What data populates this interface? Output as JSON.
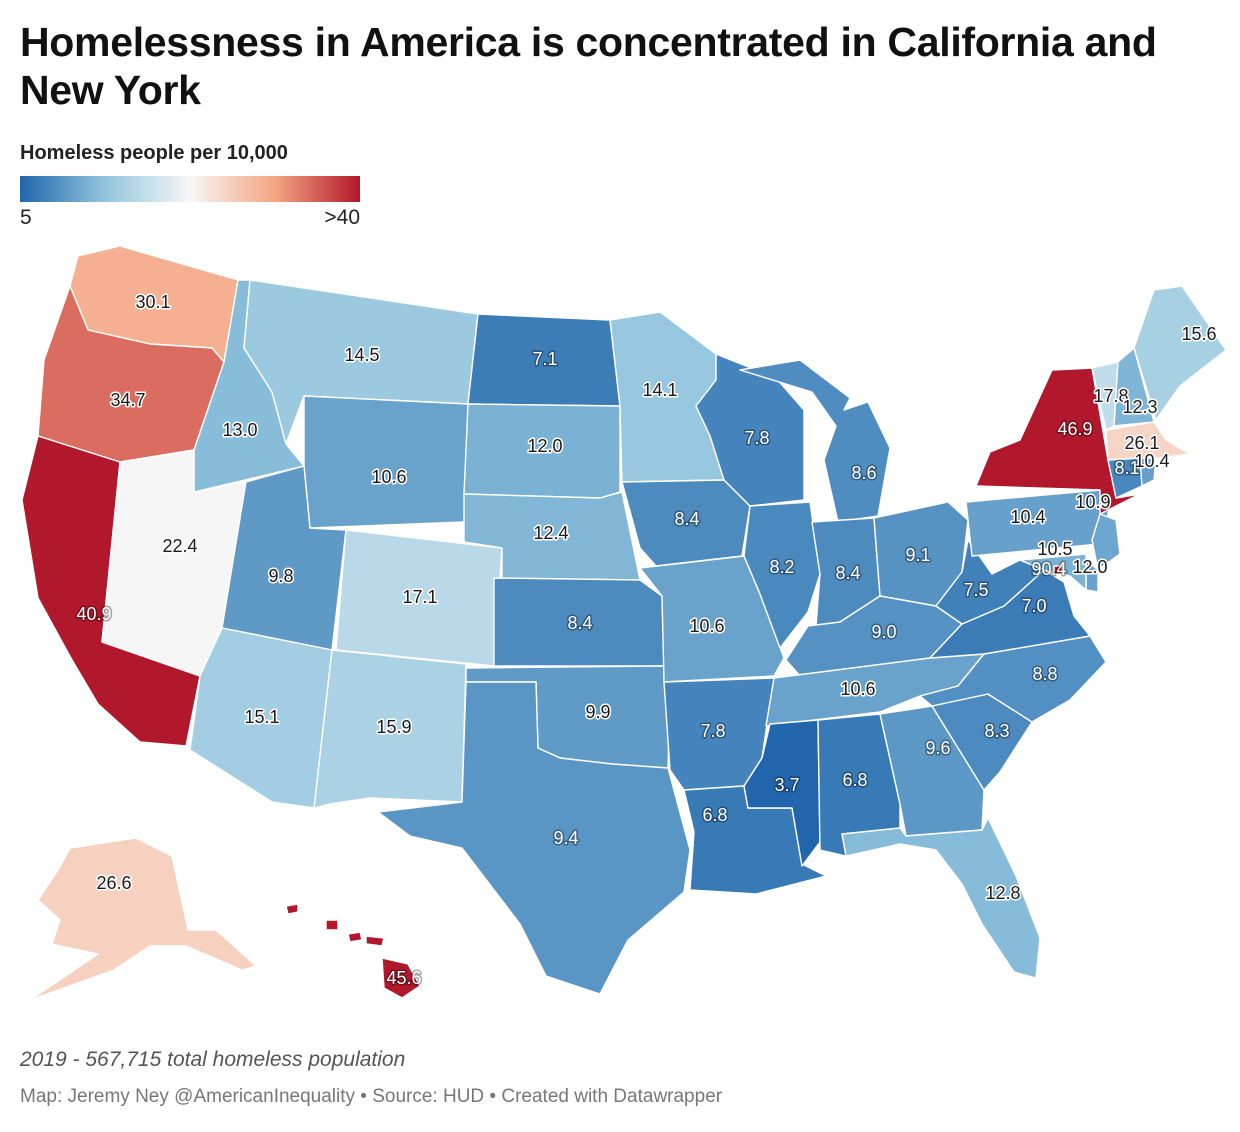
{
  "title": "Homelessness in America is concentrated in California and New York",
  "legend": {
    "title": "Homeless people per 10,000",
    "min_label": "5",
    "max_label": ">40"
  },
  "note": "2019 - 567,715 total homeless population",
  "credit": "Map: Jeremy Ney @AmericanInequality • Source: HUD • Created with Datawrapper",
  "colors": {
    "scale": [
      "#2166ac",
      "#92c5de",
      "#f7f7f7",
      "#f4a582",
      "#b2182b"
    ]
  },
  "states": [
    {
      "id": "WA",
      "value": "30.1"
    },
    {
      "id": "OR",
      "value": "34.7"
    },
    {
      "id": "CA",
      "value": "40.9"
    },
    {
      "id": "ID",
      "value": "13.0"
    },
    {
      "id": "NV",
      "value": "22.4"
    },
    {
      "id": "MT",
      "value": "14.5"
    },
    {
      "id": "WY",
      "value": "10.6"
    },
    {
      "id": "UT",
      "value": "9.8"
    },
    {
      "id": "CO",
      "value": "17.1"
    },
    {
      "id": "AZ",
      "value": "15.1"
    },
    {
      "id": "NM",
      "value": "15.9"
    },
    {
      "id": "ND",
      "value": "7.1"
    },
    {
      "id": "SD",
      "value": "12.0"
    },
    {
      "id": "NE",
      "value": "12.4"
    },
    {
      "id": "KS",
      "value": "8.4"
    },
    {
      "id": "OK",
      "value": "9.9"
    },
    {
      "id": "TX",
      "value": "9.4"
    },
    {
      "id": "MN",
      "value": "14.1"
    },
    {
      "id": "IA",
      "value": "8.4"
    },
    {
      "id": "MO",
      "value": "10.6"
    },
    {
      "id": "AR",
      "value": "7.8"
    },
    {
      "id": "LA",
      "value": "6.8"
    },
    {
      "id": "WI",
      "value": "7.8"
    },
    {
      "id": "IL",
      "value": "8.2"
    },
    {
      "id": "MI",
      "value": "8.6"
    },
    {
      "id": "IN",
      "value": "8.4"
    },
    {
      "id": "OH",
      "value": "9.1"
    },
    {
      "id": "KY",
      "value": "9.0"
    },
    {
      "id": "TN",
      "value": "10.6"
    },
    {
      "id": "MS",
      "value": "3.7"
    },
    {
      "id": "AL",
      "value": "6.8"
    },
    {
      "id": "GA",
      "value": "9.6"
    },
    {
      "id": "FL",
      "value": "12.8"
    },
    {
      "id": "SC",
      "value": "8.3"
    },
    {
      "id": "NC",
      "value": "8.8"
    },
    {
      "id": "VA",
      "value": "7.0"
    },
    {
      "id": "WV",
      "value": "7.5"
    },
    {
      "id": "PA",
      "value": "10.4"
    },
    {
      "id": "NY",
      "value": "46.9"
    },
    {
      "id": "VT",
      "value": "17.8"
    },
    {
      "id": "NH",
      "value": "12.3"
    },
    {
      "id": "ME",
      "value": "15.6"
    },
    {
      "id": "MA",
      "value": "26.1"
    },
    {
      "id": "RI",
      "value": "10.4"
    },
    {
      "id": "CT",
      "value": "8.1"
    },
    {
      "id": "NJ",
      "value": "10.9"
    },
    {
      "id": "DE",
      "value": "10.5"
    },
    {
      "id": "MD",
      "value": "12.0"
    },
    {
      "id": "DC",
      "value": "90.4"
    },
    {
      "id": "AK",
      "value": "26.6"
    },
    {
      "id": "HI",
      "value": "45.6"
    }
  ]
}
